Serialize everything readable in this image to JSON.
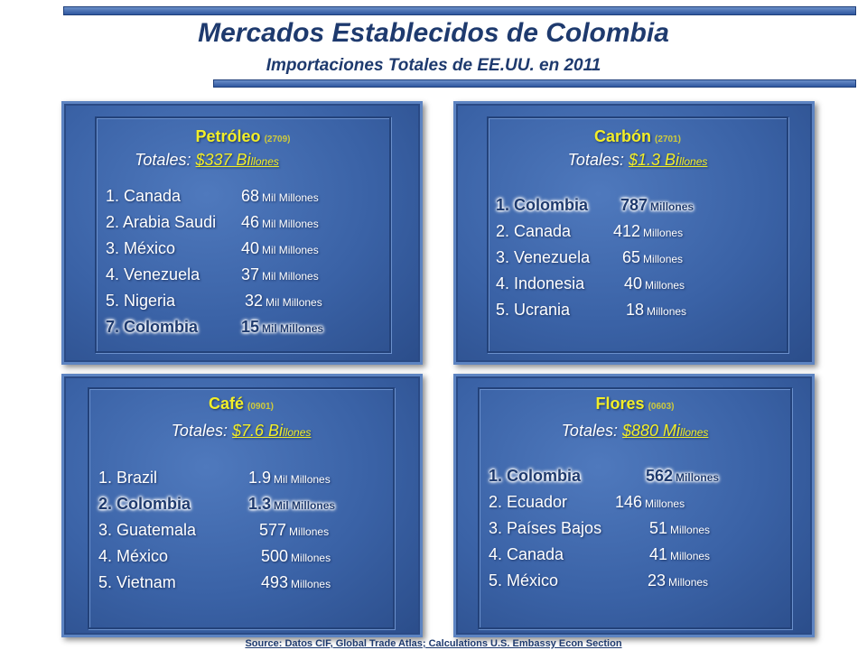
{
  "title": "Mercados Establecidos de Colombia",
  "subtitle": "Importaciones Totales de EE.UU. en 2011",
  "source": "Source:  Datos CIF, Global Trade Atlas; Calculations  U.S. Embassy Econ Section",
  "colors": {
    "panel": "#3a62a6",
    "header_yellow": "#f2ee28",
    "highlight_text": "#1e3a6e"
  },
  "panels": {
    "petroleo": {
      "name": "Petróleo",
      "code": "(2709)",
      "total_label": "Totales:",
      "total_amount": "$337 Bi",
      "total_unit": "llones",
      "rows": [
        {
          "country": "1. Canada",
          "value": "68",
          "unit": "Mil Millones"
        },
        {
          "country": "2. Arabia Saudi",
          "value": "46",
          "unit": "Mil Millones"
        },
        {
          "country": "3. México",
          "value": "40",
          "unit": "Mil Millones"
        },
        {
          "country": "4. Venezuela",
          "value": "37",
          "unit": "Mil Millones"
        },
        {
          "country": "5. Nigeria",
          "value": "32",
          "unit": "Mil Millones"
        },
        {
          "country": "7. Colombia",
          "value": "15",
          "unit": "Mil Millones"
        }
      ]
    },
    "carbon": {
      "name": "Carbón",
      "code": "(2701)",
      "total_label": "Totales:",
      "total_amount": "$1.3 Bi",
      "total_unit": "llones",
      "rows": [
        {
          "country": "1. Colombia",
          "value": "787",
          "unit": "Millones"
        },
        {
          "country": "2. Canada",
          "value": "412",
          "unit": "Millones"
        },
        {
          "country": "3. Venezuela",
          "value": "65",
          "unit": "Millones"
        },
        {
          "country": "4. Indonesia",
          "value": "40",
          "unit": "Millones"
        },
        {
          "country": "5. Ucrania",
          "value": "18",
          "unit": "Millones"
        }
      ]
    },
    "cafe": {
      "name": "Café",
      "code": "(0901)",
      "total_label": "Totales:",
      "total_amount": "$7.6 Bi",
      "total_unit": "llones",
      "rows": [
        {
          "country": "1. Brazil",
          "value": "1.9",
          "unit": "Mil Millones"
        },
        {
          "country": "2. Colombia",
          "value": "1.3",
          "unit": "Mil Millones"
        },
        {
          "country": "3. Guatemala",
          "value": "577",
          "unit": "Millones"
        },
        {
          "country": "4. México",
          "value": "500",
          "unit": "Millones"
        },
        {
          "country": "5. Vietnam",
          "value": "493",
          "unit": "Millones"
        }
      ]
    },
    "flores": {
      "name": "Flores",
      "code": "(0603)",
      "total_label": "Totales:",
      "total_amount": "$880 Mi",
      "total_unit": "llones",
      "rows": [
        {
          "country": "1. Colombia",
          "value": "562",
          "unit": "Millones"
        },
        {
          "country": "2. Ecuador",
          "value": "146",
          "unit": "Millones"
        },
        {
          "country": "3. Países Bajos",
          "value": "51",
          "unit": "Millones"
        },
        {
          "country": "4. Canada",
          "value": "41",
          "unit": "Millones"
        },
        {
          "country": "5. México",
          "value": "23",
          "unit": "Millones"
        }
      ]
    }
  }
}
